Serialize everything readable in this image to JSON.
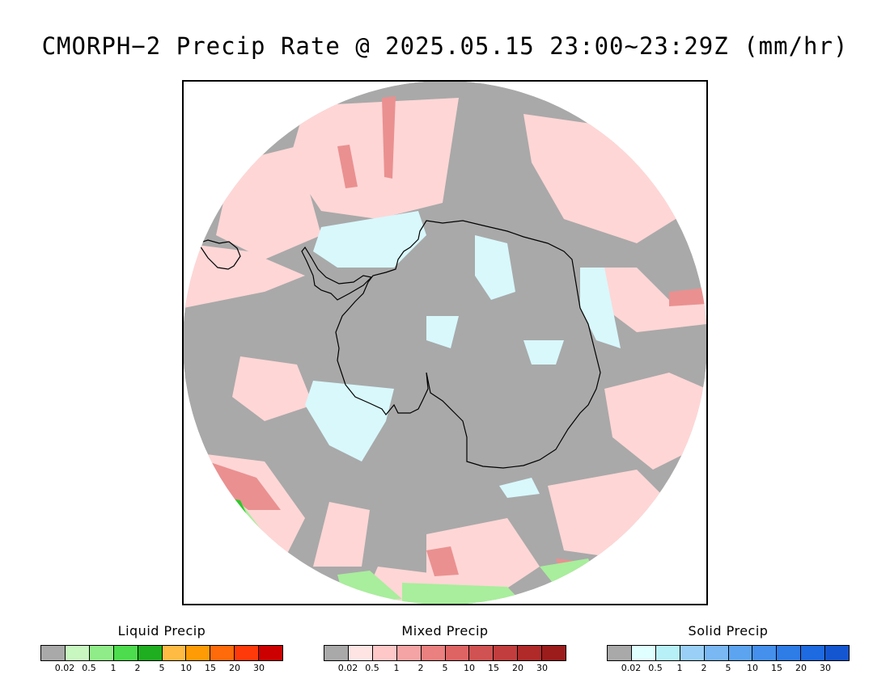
{
  "title": "CMORPH−2 Precip Rate @ 2025.05.15 23:00~23:29Z (mm/hr)",
  "map": {
    "projection": "south-polar-stereographic",
    "background_color": "#a9a9a9",
    "coastline_color": "#000000"
  },
  "legends": [
    {
      "id": "liquid",
      "title": "Liquid Precip",
      "colors": [
        "#a9a9a9",
        "#c8f7c0",
        "#90ec88",
        "#4ddc4d",
        "#1fae1f",
        "#ffbb44",
        "#ff9b05",
        "#ff6a0a",
        "#ff3a0a",
        "#cc0000"
      ],
      "ticks": [
        "0.02",
        "0.5",
        "1",
        "2",
        "5",
        "10",
        "15",
        "20",
        "30"
      ]
    },
    {
      "id": "mixed",
      "title": "Mixed Precip",
      "colors": [
        "#a9a9a9",
        "#ffe4e4",
        "#ffc8c8",
        "#f4a4a4",
        "#ea8080",
        "#de6464",
        "#d05252",
        "#c23e3e",
        "#b02a2a",
        "#9c1c1c"
      ],
      "ticks": [
        "0.02",
        "0.5",
        "1",
        "2",
        "5",
        "10",
        "15",
        "20",
        "30"
      ]
    },
    {
      "id": "solid",
      "title": "Solid Precip",
      "colors": [
        "#a9a9a9",
        "#e0ffff",
        "#b8f0f8",
        "#9ad0f8",
        "#7ab8f4",
        "#5ca4f0",
        "#4490ec",
        "#2e7ce6",
        "#1e6ae0",
        "#1456d0"
      ],
      "ticks": [
        "0.02",
        "0.5",
        "1",
        "2",
        "5",
        "10",
        "15",
        "20",
        "30"
      ]
    }
  ]
}
